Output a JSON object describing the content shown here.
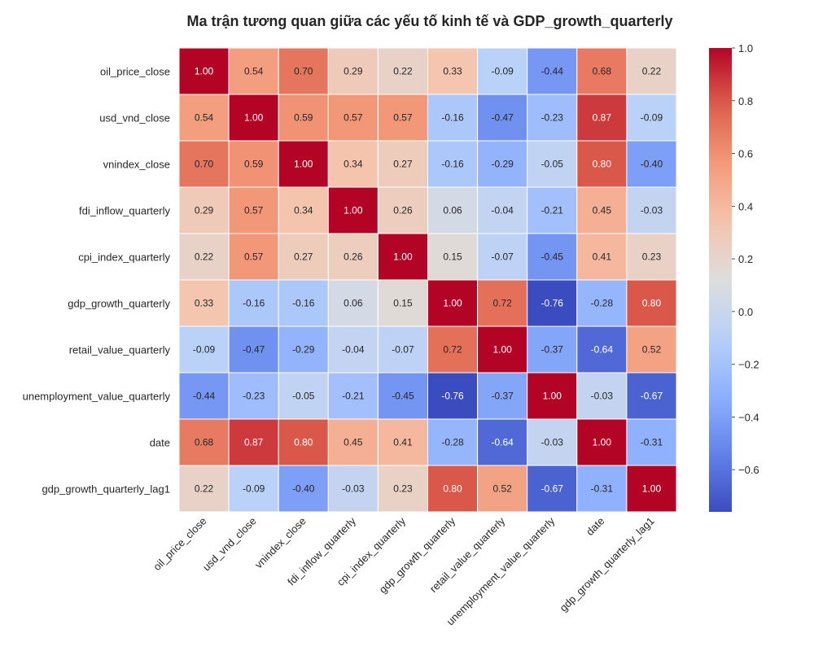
{
  "chart_data": {
    "type": "heatmap",
    "title": "Ma trận tương quan giữa các yếu tố kinh tế và GDP_growth_quarterly",
    "rows": [
      "oil_price_close",
      "usd_vnd_close",
      "vnindex_close",
      "fdi_inflow_quarterly",
      "cpi_index_quarterly",
      "gdp_growth_quarterly",
      "retail_value_quarterly",
      "unemployment_value_quarterly",
      "date",
      "gdp_growth_quarterly_lag1"
    ],
    "columns": [
      "oil_price_close",
      "usd_vnd_close",
      "vnindex_close",
      "fdi_inflow_quarterly",
      "cpi_index_quarterly",
      "gdp_growth_quarterly",
      "retail_value_quarterly",
      "unemployment_value_quarterly",
      "date",
      "gdp_growth_quarterly_lag1"
    ],
    "values": [
      [
        1.0,
        0.54,
        0.7,
        0.29,
        0.22,
        0.33,
        -0.09,
        -0.44,
        0.68,
        0.22
      ],
      [
        0.54,
        1.0,
        0.59,
        0.57,
        0.57,
        -0.16,
        -0.47,
        -0.23,
        0.87,
        -0.09
      ],
      [
        0.7,
        0.59,
        1.0,
        0.34,
        0.27,
        -0.16,
        -0.29,
        -0.05,
        0.8,
        -0.4
      ],
      [
        0.29,
        0.57,
        0.34,
        1.0,
        0.26,
        0.06,
        -0.04,
        -0.21,
        0.45,
        -0.03
      ],
      [
        0.22,
        0.57,
        0.27,
        0.26,
        1.0,
        0.15,
        -0.07,
        -0.45,
        0.41,
        0.23
      ],
      [
        0.33,
        -0.16,
        -0.16,
        0.06,
        0.15,
        1.0,
        0.72,
        -0.76,
        -0.28,
        0.8
      ],
      [
        -0.09,
        -0.47,
        -0.29,
        -0.04,
        -0.07,
        0.72,
        1.0,
        -0.37,
        -0.64,
        0.52
      ],
      [
        -0.44,
        -0.23,
        -0.05,
        -0.21,
        -0.45,
        -0.76,
        -0.37,
        1.0,
        -0.03,
        -0.67
      ],
      [
        0.68,
        0.87,
        0.8,
        0.45,
        0.41,
        -0.28,
        -0.64,
        -0.03,
        1.0,
        -0.31
      ],
      [
        0.22,
        -0.09,
        -0.4,
        -0.03,
        0.23,
        0.8,
        0.52,
        -0.67,
        -0.31,
        1.0
      ]
    ],
    "colormap": "coolwarm",
    "vmin": -0.76,
    "vmax": 1.0,
    "colorbar": {
      "ticks": [
        1.0,
        0.8,
        0.6,
        0.4,
        0.2,
        0.0,
        -0.2,
        -0.4,
        -0.6
      ],
      "tick_labels": [
        "1.0",
        "0.8",
        "0.6",
        "0.4",
        "0.2",
        "0.0",
        "−0.2",
        "−0.4",
        "−0.6"
      ]
    },
    "annotations": "shown"
  }
}
